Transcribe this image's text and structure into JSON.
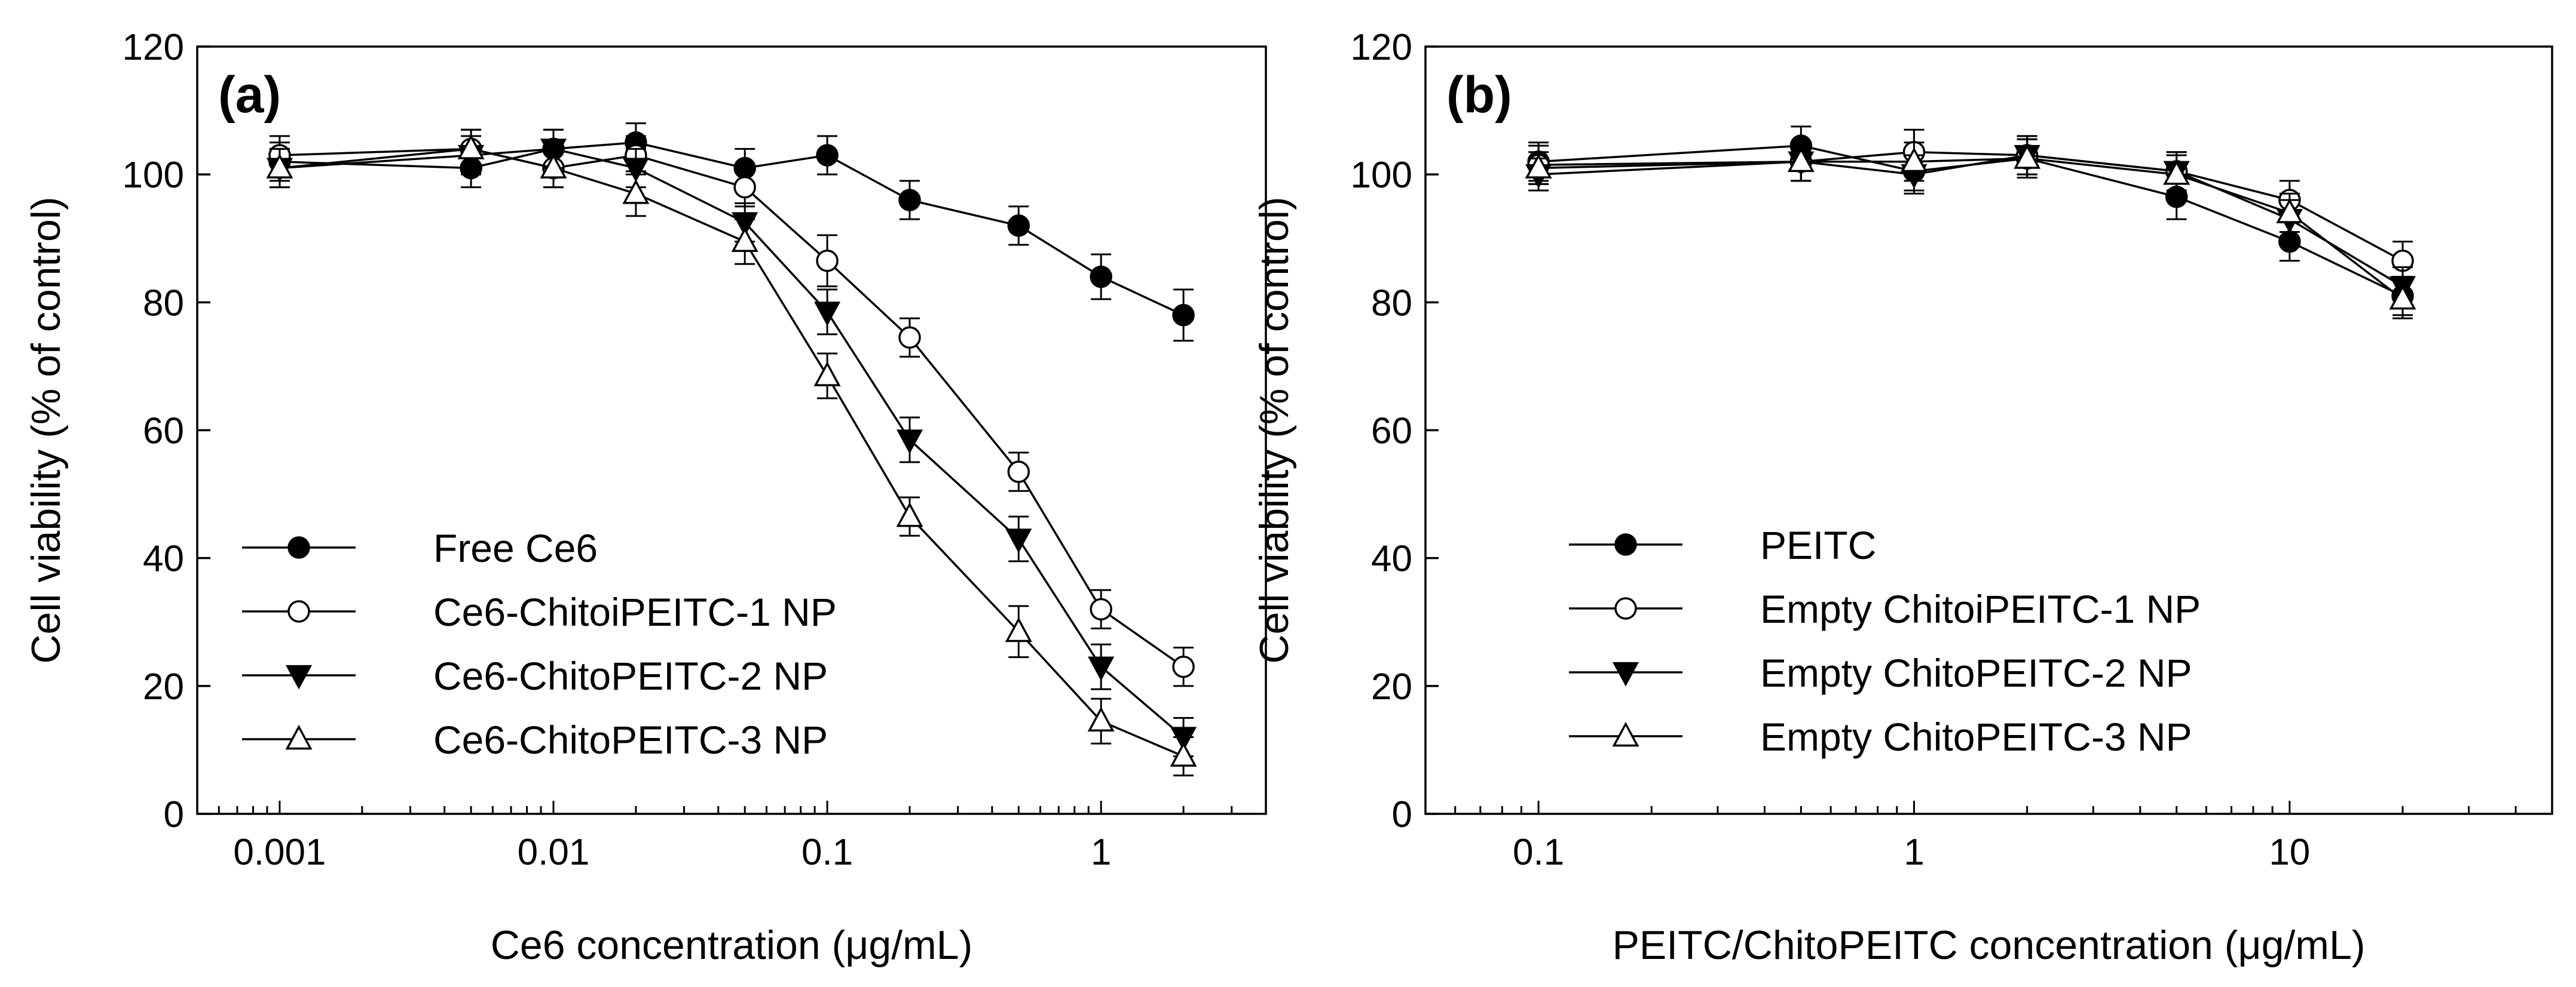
{
  "chart_data": [
    {
      "type": "line",
      "panel_label": "(a)",
      "xscale": "log",
      "xlabel": "Ce6 concentration (μg/mL)",
      "ylabel": "Cell viability (% of control)",
      "xlim": [
        0.0005,
        4
      ],
      "ylim": [
        0,
        120
      ],
      "xticks": [
        0.001,
        0.01,
        0.1,
        1
      ],
      "xtick_labels": [
        "0.001",
        "0.01",
        "0.1",
        "1"
      ],
      "yticks": [
        0,
        20,
        40,
        60,
        80,
        100,
        120
      ],
      "ytick_labels": [
        "0",
        "20",
        "40",
        "60",
        "80",
        "100",
        "120"
      ],
      "legend_position": "lower-left",
      "x": [
        0.001,
        0.005,
        0.01,
        0.02,
        0.05,
        0.1,
        0.2,
        0.5,
        1,
        2
      ],
      "series": [
        {
          "name": "Free Ce6",
          "marker": "filled-circle",
          "values": [
            102,
            101,
            104,
            105,
            101,
            103,
            96,
            92,
            84,
            78
          ],
          "errors": [
            3,
            3,
            3,
            3,
            3,
            3,
            3,
            3,
            3.5,
            4
          ]
        },
        {
          "name": "Ce6-ChitoiPEITC-1 NP",
          "marker": "open-circle",
          "values": [
            103,
            104,
            101,
            103,
            98,
            86.5,
            74.5,
            53.5,
            32,
            23
          ],
          "errors": [
            3,
            3,
            3,
            3,
            3,
            4,
            3,
            3,
            3,
            3
          ]
        },
        {
          "name": "Ce6-ChitoPEITC-2 NP",
          "marker": "filled-triangle-down",
          "values": [
            101,
            103,
            104,
            101,
            92.5,
            78.5,
            58.5,
            43,
            23,
            12
          ],
          "errors": [
            3,
            3,
            3,
            3,
            3,
            3.5,
            3.5,
            3.5,
            3.5,
            3
          ]
        },
        {
          "name": "Ce6-ChitoPEITC-3 NP",
          "marker": "open-triangle-up",
          "values": [
            101,
            104,
            101,
            97,
            89.5,
            68.5,
            46.5,
            28.5,
            14.5,
            9
          ],
          "errors": [
            3,
            3,
            3,
            3.5,
            3.5,
            3.5,
            3,
            4,
            3.5,
            3
          ]
        }
      ]
    },
    {
      "type": "line",
      "panel_label": "(b)",
      "xscale": "log",
      "xlabel": "PEITC/ChitoPEITC concentration (μg/mL)",
      "ylabel": "Cell viability (% of control)",
      "xlim": [
        0.05,
        50
      ],
      "ylim": [
        0,
        120
      ],
      "xticks": [
        0.1,
        1,
        10
      ],
      "xtick_labels": [
        "0.1",
        "1",
        "10"
      ],
      "yticks": [
        0,
        20,
        40,
        60,
        80,
        100,
        120
      ],
      "ytick_labels": [
        "0",
        "20",
        "40",
        "60",
        "80",
        "100",
        "120"
      ],
      "legend_position": "lower-left",
      "x": [
        0.1,
        0.5,
        1,
        2,
        5,
        10,
        20
      ],
      "series": [
        {
          "name": "PEITC",
          "marker": "filled-circle",
          "values": [
            102,
            104.5,
            100.5,
            102.5,
            96.5,
            89.5,
            81
          ],
          "errors": [
            3,
            3,
            3,
            3,
            3.5,
            3,
            3
          ]
        },
        {
          "name": "Empty ChitoiPEITC-1 NP",
          "marker": "open-circle",
          "values": [
            101.5,
            102,
            103.5,
            103,
            100.5,
            96,
            86.5
          ],
          "errors": [
            3,
            3,
            3.5,
            3,
            3,
            3,
            3
          ]
        },
        {
          "name": "Empty ChitoPEITC-2 NP",
          "marker": "filled-triangle-down",
          "values": [
            100,
            102,
            100,
            103,
            100.5,
            93,
            82.5
          ],
          "errors": [
            2.5,
            3,
            3,
            3,
            3,
            3,
            3
          ]
        },
        {
          "name": "Empty ChitoPEITC-3 NP",
          "marker": "open-triangle-up",
          "values": [
            101,
            102,
            102,
            102.5,
            100,
            94,
            80.5
          ],
          "errors": [
            2.5,
            3,
            3,
            3,
            3,
            3,
            3
          ]
        }
      ]
    }
  ]
}
